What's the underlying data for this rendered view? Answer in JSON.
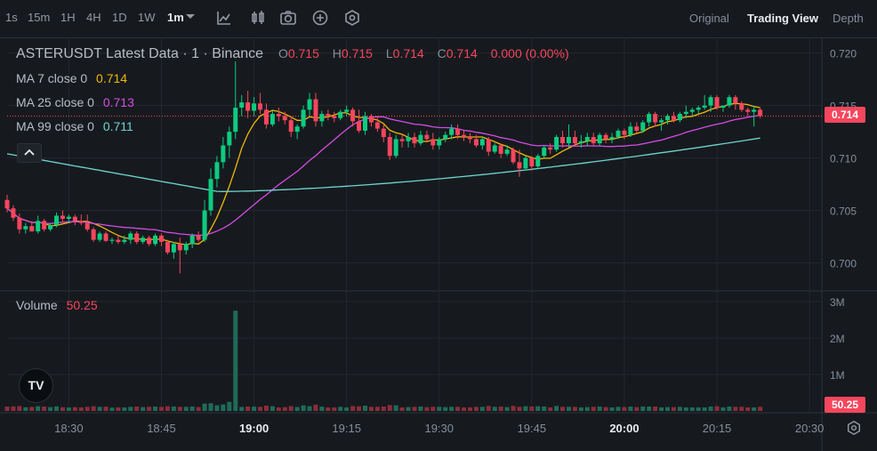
{
  "toolbar": {
    "timeframes": [
      "1s",
      "15m",
      "1H",
      "4H",
      "1D",
      "1W",
      "1m"
    ],
    "active_timeframe": "1m",
    "tools": [
      "indicators-icon",
      "candle-type-icon",
      "camera-icon",
      "add-icon",
      "settings-hex-icon"
    ],
    "views": [
      "Original",
      "Trading View",
      "Depth"
    ],
    "active_view": "Trading View"
  },
  "legend": {
    "title": "ASTERUSDT Latest Data · 1 · Binance",
    "o_label": "O",
    "o": "0.715",
    "h_label": "H",
    "h": "0.715",
    "l_label": "L",
    "l": "0.714",
    "c_label": "C",
    "c": "0.714",
    "change": "0.000 (0.00%)",
    "ma7_label": "MA 7 close 0",
    "ma7": "0.714",
    "ma25_label": "MA 25 close 0",
    "ma25": "0.713",
    "ma99_label": "MA 99 close 0",
    "ma99": "0.711",
    "volume_label": "Volume",
    "volume": "50.25"
  },
  "price_axis": [
    "0.720",
    "0.715",
    "0.710",
    "0.705",
    "0.700"
  ],
  "volume_axis": [
    "3M",
    "2M",
    "1M"
  ],
  "time_axis": [
    "18:30",
    "18:45",
    "19:00",
    "19:15",
    "19:30",
    "19:45",
    "20:00",
    "20:15",
    "20:30"
  ],
  "last_price_tag": "0.714",
  "last_volume_tag": "50.25",
  "logo": "TV",
  "colors": {
    "up": "#0ecb81",
    "down": "#f6465d",
    "ma7": "#f0b90b",
    "ma25": "#d54ce6",
    "ma99": "#6fd4d0",
    "volume_up": "#1f6b58",
    "volume_down": "#8a2d3a",
    "bg": "#161a1e",
    "grid": "#23272e"
  },
  "chart_data": {
    "type": "candlestick",
    "title": "ASTERUSDT Latest Data · 1 · Binance",
    "x_range": [
      "18:20",
      "20:32"
    ],
    "ylim": [
      0.6975,
      0.7215
    ],
    "volume_ylim": [
      0,
      3000000
    ],
    "candles": [
      {
        "t": "18:20",
        "o": 0.706,
        "h": 0.7065,
        "l": 0.7048,
        "c": 0.7052
      },
      {
        "t": "18:21",
        "o": 0.7052,
        "h": 0.7055,
        "l": 0.704,
        "c": 0.7043
      },
      {
        "t": "18:22",
        "o": 0.7043,
        "h": 0.7047,
        "l": 0.7028,
        "c": 0.7032
      },
      {
        "t": "18:23",
        "o": 0.7032,
        "h": 0.7038,
        "l": 0.7028,
        "c": 0.7035
      },
      {
        "t": "18:24",
        "o": 0.7035,
        "h": 0.704,
        "l": 0.703,
        "c": 0.703
      },
      {
        "t": "18:25",
        "o": 0.703,
        "h": 0.7045,
        "l": 0.7028,
        "c": 0.704
      },
      {
        "t": "18:26",
        "o": 0.704,
        "h": 0.7042,
        "l": 0.703,
        "c": 0.7032
      },
      {
        "t": "18:27",
        "o": 0.7032,
        "h": 0.7038,
        "l": 0.703,
        "c": 0.7036
      },
      {
        "t": "18:28",
        "o": 0.7036,
        "h": 0.7048,
        "l": 0.7034,
        "c": 0.7045
      },
      {
        "t": "18:29",
        "o": 0.7045,
        "h": 0.705,
        "l": 0.7038,
        "c": 0.7042
      },
      {
        "t": "18:30",
        "o": 0.7042,
        "h": 0.7046,
        "l": 0.7038,
        "c": 0.7044
      },
      {
        "t": "18:31",
        "o": 0.7044,
        "h": 0.7046,
        "l": 0.7036,
        "c": 0.704
      },
      {
        "t": "18:32",
        "o": 0.704,
        "h": 0.7046,
        "l": 0.7036,
        "c": 0.7038
      },
      {
        "t": "18:33",
        "o": 0.7038,
        "h": 0.7046,
        "l": 0.703,
        "c": 0.7032
      },
      {
        "t": "18:34",
        "o": 0.7032,
        "h": 0.7034,
        "l": 0.702,
        "c": 0.7022
      },
      {
        "t": "18:35",
        "o": 0.7022,
        "h": 0.703,
        "l": 0.702,
        "c": 0.7028
      },
      {
        "t": "18:36",
        "o": 0.7028,
        "h": 0.703,
        "l": 0.702,
        "c": 0.7021
      },
      {
        "t": "18:37",
        "o": 0.7021,
        "h": 0.7024,
        "l": 0.7018,
        "c": 0.7022
      },
      {
        "t": "18:38",
        "o": 0.7022,
        "h": 0.7026,
        "l": 0.7018,
        "c": 0.702
      },
      {
        "t": "18:39",
        "o": 0.702,
        "h": 0.7026,
        "l": 0.7018,
        "c": 0.7022
      },
      {
        "t": "18:40",
        "o": 0.7022,
        "h": 0.703,
        "l": 0.7018,
        "c": 0.7028
      },
      {
        "t": "18:41",
        "o": 0.7028,
        "h": 0.703,
        "l": 0.7018,
        "c": 0.702
      },
      {
        "t": "18:42",
        "o": 0.702,
        "h": 0.7026,
        "l": 0.7018,
        "c": 0.7024
      },
      {
        "t": "18:43",
        "o": 0.7024,
        "h": 0.7026,
        "l": 0.7016,
        "c": 0.7018
      },
      {
        "t": "18:44",
        "o": 0.7018,
        "h": 0.7028,
        "l": 0.7016,
        "c": 0.7026
      },
      {
        "t": "18:45",
        "o": 0.7026,
        "h": 0.7028,
        "l": 0.7016,
        "c": 0.702
      },
      {
        "t": "18:46",
        "o": 0.702,
        "h": 0.7022,
        "l": 0.7008,
        "c": 0.701
      },
      {
        "t": "18:47",
        "o": 0.701,
        "h": 0.702,
        "l": 0.7004,
        "c": 0.7018
      },
      {
        "t": "18:48",
        "o": 0.7018,
        "h": 0.7024,
        "l": 0.699,
        "c": 0.7012
      },
      {
        "t": "18:49",
        "o": 0.7012,
        "h": 0.702,
        "l": 0.7008,
        "c": 0.7018
      },
      {
        "t": "18:50",
        "o": 0.7018,
        "h": 0.7028,
        "l": 0.7014,
        "c": 0.7026
      },
      {
        "t": "18:51",
        "o": 0.7026,
        "h": 0.703,
        "l": 0.702,
        "c": 0.7022
      },
      {
        "t": "18:52",
        "o": 0.7022,
        "h": 0.706,
        "l": 0.702,
        "c": 0.705
      },
      {
        "t": "18:53",
        "o": 0.705,
        "h": 0.709,
        "l": 0.7045,
        "c": 0.708
      },
      {
        "t": "18:54",
        "o": 0.708,
        "h": 0.7102,
        "l": 0.7072,
        "c": 0.7096
      },
      {
        "t": "18:55",
        "o": 0.7096,
        "h": 0.712,
        "l": 0.709,
        "c": 0.7112
      },
      {
        "t": "18:56",
        "o": 0.7112,
        "h": 0.713,
        "l": 0.71,
        "c": 0.7125
      },
      {
        "t": "18:57",
        "o": 0.7125,
        "h": 0.7192,
        "l": 0.7118,
        "c": 0.7148
      },
      {
        "t": "18:58",
        "o": 0.7148,
        "h": 0.716,
        "l": 0.714,
        "c": 0.7153
      },
      {
        "t": "18:59",
        "o": 0.7153,
        "h": 0.7164,
        "l": 0.7138,
        "c": 0.7145
      },
      {
        "t": "19:00",
        "o": 0.7145,
        "h": 0.7158,
        "l": 0.714,
        "c": 0.7152
      },
      {
        "t": "19:01",
        "o": 0.7152,
        "h": 0.7162,
        "l": 0.7142,
        "c": 0.7146
      },
      {
        "t": "19:02",
        "o": 0.7146,
        "h": 0.7152,
        "l": 0.7128,
        "c": 0.7132
      },
      {
        "t": "19:03",
        "o": 0.7132,
        "h": 0.7145,
        "l": 0.713,
        "c": 0.7142
      },
      {
        "t": "19:04",
        "o": 0.7142,
        "h": 0.7148,
        "l": 0.7135,
        "c": 0.714
      },
      {
        "t": "19:05",
        "o": 0.714,
        "h": 0.7144,
        "l": 0.7132,
        "c": 0.7136
      },
      {
        "t": "19:06",
        "o": 0.7136,
        "h": 0.714,
        "l": 0.712,
        "c": 0.7125
      },
      {
        "t": "19:07",
        "o": 0.7125,
        "h": 0.7132,
        "l": 0.7118,
        "c": 0.713
      },
      {
        "t": "19:08",
        "o": 0.713,
        "h": 0.715,
        "l": 0.7128,
        "c": 0.7146
      },
      {
        "t": "19:09",
        "o": 0.7146,
        "h": 0.7162,
        "l": 0.714,
        "c": 0.7156
      },
      {
        "t": "19:10",
        "o": 0.7156,
        "h": 0.7162,
        "l": 0.713,
        "c": 0.7135
      },
      {
        "t": "19:11",
        "o": 0.7135,
        "h": 0.7145,
        "l": 0.713,
        "c": 0.7142
      },
      {
        "t": "19:12",
        "o": 0.7142,
        "h": 0.7146,
        "l": 0.7136,
        "c": 0.714
      },
      {
        "t": "19:13",
        "o": 0.714,
        "h": 0.7144,
        "l": 0.7134,
        "c": 0.7138
      },
      {
        "t": "19:14",
        "o": 0.7138,
        "h": 0.7146,
        "l": 0.7136,
        "c": 0.7144
      },
      {
        "t": "19:15",
        "o": 0.7144,
        "h": 0.715,
        "l": 0.714,
        "c": 0.7146
      },
      {
        "t": "19:16",
        "o": 0.7146,
        "h": 0.7148,
        "l": 0.713,
        "c": 0.7135
      },
      {
        "t": "19:17",
        "o": 0.7135,
        "h": 0.7146,
        "l": 0.7124,
        "c": 0.7126
      },
      {
        "t": "19:18",
        "o": 0.7126,
        "h": 0.7144,
        "l": 0.7122,
        "c": 0.714
      },
      {
        "t": "19:19",
        "o": 0.714,
        "h": 0.7142,
        "l": 0.713,
        "c": 0.7134
      },
      {
        "t": "19:20",
        "o": 0.7134,
        "h": 0.714,
        "l": 0.7125,
        "c": 0.7128
      },
      {
        "t": "19:21",
        "o": 0.7128,
        "h": 0.7132,
        "l": 0.7115,
        "c": 0.712
      },
      {
        "t": "19:22",
        "o": 0.712,
        "h": 0.7124,
        "l": 0.7098,
        "c": 0.7102
      },
      {
        "t": "19:23",
        "o": 0.7102,
        "h": 0.7122,
        "l": 0.71,
        "c": 0.7118
      },
      {
        "t": "19:24",
        "o": 0.7118,
        "h": 0.7122,
        "l": 0.711,
        "c": 0.7116
      },
      {
        "t": "19:25",
        "o": 0.7116,
        "h": 0.7124,
        "l": 0.711,
        "c": 0.712
      },
      {
        "t": "19:26",
        "o": 0.712,
        "h": 0.7124,
        "l": 0.711,
        "c": 0.7114
      },
      {
        "t": "19:27",
        "o": 0.7114,
        "h": 0.7126,
        "l": 0.7112,
        "c": 0.7122
      },
      {
        "t": "19:28",
        "o": 0.7122,
        "h": 0.7126,
        "l": 0.7116,
        "c": 0.7118
      },
      {
        "t": "19:29",
        "o": 0.7118,
        "h": 0.7124,
        "l": 0.7108,
        "c": 0.7112
      },
      {
        "t": "19:30",
        "o": 0.7112,
        "h": 0.712,
        "l": 0.7108,
        "c": 0.7118
      },
      {
        "t": "19:31",
        "o": 0.7118,
        "h": 0.7125,
        "l": 0.7115,
        "c": 0.7122
      },
      {
        "t": "19:32",
        "o": 0.7122,
        "h": 0.7132,
        "l": 0.7118,
        "c": 0.7128
      },
      {
        "t": "19:33",
        "o": 0.7128,
        "h": 0.7132,
        "l": 0.7118,
        "c": 0.7122
      },
      {
        "t": "19:34",
        "o": 0.7122,
        "h": 0.7126,
        "l": 0.7116,
        "c": 0.712
      },
      {
        "t": "19:35",
        "o": 0.712,
        "h": 0.7124,
        "l": 0.7114,
        "c": 0.7118
      },
      {
        "t": "19:36",
        "o": 0.7118,
        "h": 0.7122,
        "l": 0.711,
        "c": 0.7112
      },
      {
        "t": "19:37",
        "o": 0.7112,
        "h": 0.712,
        "l": 0.7108,
        "c": 0.7118
      },
      {
        "t": "19:38",
        "o": 0.7118,
        "h": 0.712,
        "l": 0.7102,
        "c": 0.7106
      },
      {
        "t": "19:39",
        "o": 0.7106,
        "h": 0.7114,
        "l": 0.7104,
        "c": 0.7112
      },
      {
        "t": "19:40",
        "o": 0.7112,
        "h": 0.7114,
        "l": 0.71,
        "c": 0.7104
      },
      {
        "t": "19:41",
        "o": 0.7104,
        "h": 0.7112,
        "l": 0.7102,
        "c": 0.7108
      },
      {
        "t": "19:42",
        "o": 0.7108,
        "h": 0.711,
        "l": 0.7094,
        "c": 0.7096
      },
      {
        "t": "19:43",
        "o": 0.7096,
        "h": 0.7108,
        "l": 0.7082,
        "c": 0.709
      },
      {
        "t": "19:44",
        "o": 0.709,
        "h": 0.7102,
        "l": 0.7088,
        "c": 0.71
      },
      {
        "t": "19:45",
        "o": 0.71,
        "h": 0.7102,
        "l": 0.7088,
        "c": 0.7092
      },
      {
        "t": "19:46",
        "o": 0.7092,
        "h": 0.7104,
        "l": 0.709,
        "c": 0.7102
      },
      {
        "t": "19:47",
        "o": 0.7102,
        "h": 0.7112,
        "l": 0.71,
        "c": 0.711
      },
      {
        "t": "19:48",
        "o": 0.711,
        "h": 0.7114,
        "l": 0.7104,
        "c": 0.7108
      },
      {
        "t": "19:49",
        "o": 0.7108,
        "h": 0.7122,
        "l": 0.7106,
        "c": 0.712
      },
      {
        "t": "19:50",
        "o": 0.712,
        "h": 0.7126,
        "l": 0.711,
        "c": 0.7114
      },
      {
        "t": "19:51",
        "o": 0.7114,
        "h": 0.7132,
        "l": 0.711,
        "c": 0.712
      },
      {
        "t": "19:52",
        "o": 0.712,
        "h": 0.7126,
        "l": 0.7112,
        "c": 0.7114
      },
      {
        "t": "19:53",
        "o": 0.7114,
        "h": 0.7122,
        "l": 0.711,
        "c": 0.7116
      },
      {
        "t": "19:54",
        "o": 0.7116,
        "h": 0.7124,
        "l": 0.7112,
        "c": 0.712
      },
      {
        "t": "19:55",
        "o": 0.712,
        "h": 0.7124,
        "l": 0.7112,
        "c": 0.7114
      },
      {
        "t": "19:56",
        "o": 0.7114,
        "h": 0.7124,
        "l": 0.7112,
        "c": 0.7122
      },
      {
        "t": "19:57",
        "o": 0.7122,
        "h": 0.7124,
        "l": 0.7114,
        "c": 0.7118
      },
      {
        "t": "19:58",
        "o": 0.7118,
        "h": 0.7124,
        "l": 0.7114,
        "c": 0.712
      },
      {
        "t": "19:59",
        "o": 0.712,
        "h": 0.7128,
        "l": 0.7118,
        "c": 0.7126
      },
      {
        "t": "20:00",
        "o": 0.7126,
        "h": 0.7128,
        "l": 0.7118,
        "c": 0.7122
      },
      {
        "t": "20:01",
        "o": 0.7122,
        "h": 0.7134,
        "l": 0.712,
        "c": 0.713
      },
      {
        "t": "20:02",
        "o": 0.713,
        "h": 0.7134,
        "l": 0.7124,
        "c": 0.7126
      },
      {
        "t": "20:03",
        "o": 0.7126,
        "h": 0.7136,
        "l": 0.7124,
        "c": 0.7134
      },
      {
        "t": "20:04",
        "o": 0.7134,
        "h": 0.7144,
        "l": 0.713,
        "c": 0.7142
      },
      {
        "t": "20:05",
        "o": 0.7142,
        "h": 0.7144,
        "l": 0.713,
        "c": 0.7134
      },
      {
        "t": "20:06",
        "o": 0.7134,
        "h": 0.7138,
        "l": 0.7126,
        "c": 0.7136
      },
      {
        "t": "20:07",
        "o": 0.7136,
        "h": 0.7142,
        "l": 0.7132,
        "c": 0.714
      },
      {
        "t": "20:08",
        "o": 0.714,
        "h": 0.7144,
        "l": 0.7134,
        "c": 0.7136
      },
      {
        "t": "20:09",
        "o": 0.7136,
        "h": 0.7144,
        "l": 0.7134,
        "c": 0.7142
      },
      {
        "t": "20:10",
        "o": 0.7142,
        "h": 0.715,
        "l": 0.7138,
        "c": 0.7144
      },
      {
        "t": "20:11",
        "o": 0.7144,
        "h": 0.7148,
        "l": 0.714,
        "c": 0.7146
      },
      {
        "t": "20:12",
        "o": 0.7146,
        "h": 0.715,
        "l": 0.7142,
        "c": 0.7148
      },
      {
        "t": "20:13",
        "o": 0.7148,
        "h": 0.716,
        "l": 0.7146,
        "c": 0.715
      },
      {
        "t": "20:14",
        "o": 0.715,
        "h": 0.716,
        "l": 0.7144,
        "c": 0.7158
      },
      {
        "t": "20:15",
        "o": 0.7158,
        "h": 0.716,
        "l": 0.7146,
        "c": 0.7148
      },
      {
        "t": "20:16",
        "o": 0.7148,
        "h": 0.715,
        "l": 0.7144,
        "c": 0.715
      },
      {
        "t": "20:17",
        "o": 0.715,
        "h": 0.716,
        "l": 0.7148,
        "c": 0.7158
      },
      {
        "t": "20:18",
        "o": 0.7158,
        "h": 0.716,
        "l": 0.7146,
        "c": 0.7152
      },
      {
        "t": "20:19",
        "o": 0.7152,
        "h": 0.7154,
        "l": 0.7144,
        "c": 0.7146
      },
      {
        "t": "20:20",
        "o": 0.7146,
        "h": 0.7148,
        "l": 0.714,
        "c": 0.7144
      },
      {
        "t": "20:21",
        "o": 0.7144,
        "h": 0.715,
        "l": 0.713,
        "c": 0.7146
      },
      {
        "t": "20:22",
        "o": 0.7146,
        "h": 0.7148,
        "l": 0.7138,
        "c": 0.714
      }
    ],
    "volume_spike": {
      "t": "18:57",
      "value": 2750000
    },
    "ma7": {
      "start": "18:20",
      "end": "20:22",
      "last": 0.714
    },
    "ma25": {
      "start": "18:20",
      "end": "20:22",
      "last": 0.713
    },
    "ma99": {
      "start": "18:20",
      "end": "20:22",
      "last": 0.711
    },
    "last_price": 0.714,
    "grid": true
  }
}
